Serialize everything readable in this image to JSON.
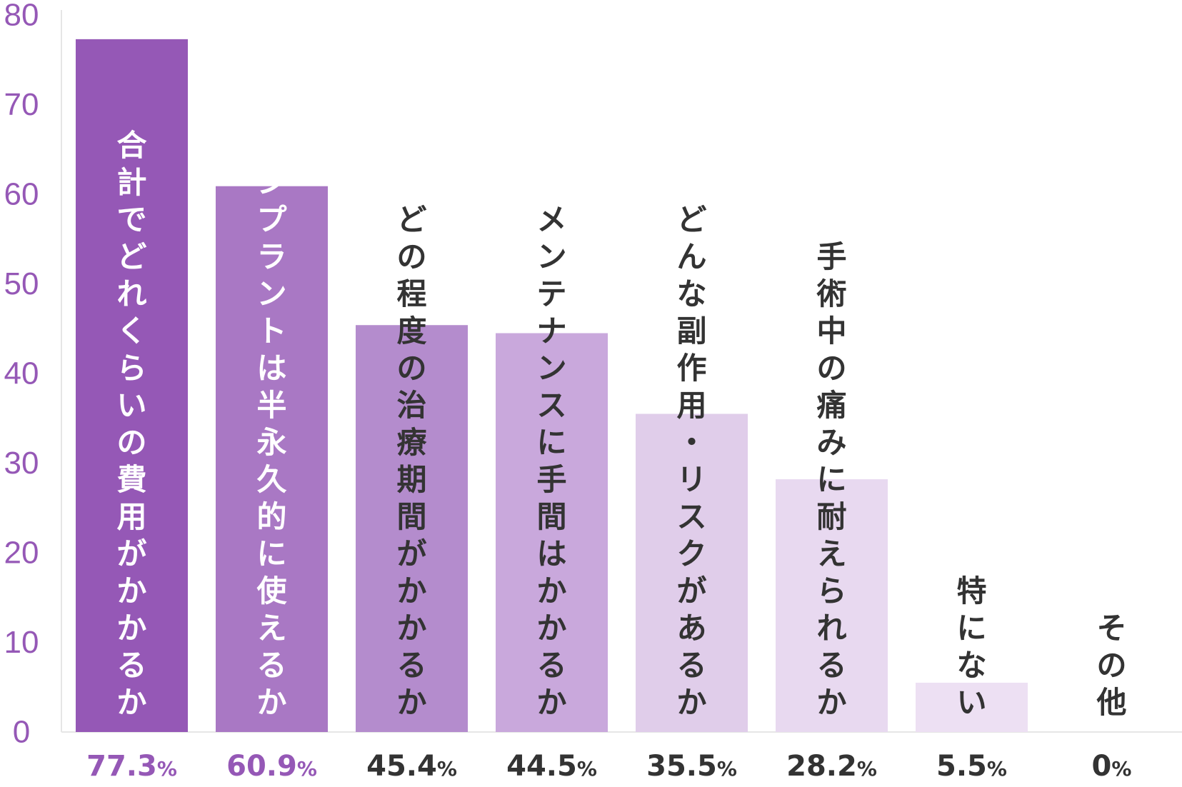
{
  "chart_data": {
    "type": "bar",
    "orientation": "vertical",
    "ylim": [
      0,
      80
    ],
    "yticks": [
      "0",
      "10",
      "20",
      "30",
      "40",
      "50",
      "60",
      "70",
      "80"
    ],
    "grid": false,
    "legend": "none",
    "categories": [
      "合計でどれくらいの費用がかかるか",
      "インプラントは半永久的に使えるか",
      "どの程度の治療期間がかかるか",
      "メンテナンスに手間はかかるか",
      "どんな副作用・リスクがあるか",
      "手術中の痛みに耐えられるか",
      "特にない",
      "その他"
    ],
    "values": [
      77.3,
      60.9,
      45.4,
      44.5,
      35.5,
      28.2,
      5.5,
      0
    ],
    "value_labels": [
      "77.3",
      "60.9",
      "45.4",
      "44.5",
      "35.5",
      "28.2",
      "5.5",
      "0"
    ],
    "value_unit": "%",
    "bar_colors": [
      "#9558b6",
      "#a978c4",
      "#b48ccd",
      "#c9a8dc",
      "#e0cdea",
      "#e8d9f0",
      "#ede0f3",
      "#ffffff"
    ],
    "category_text_colors": [
      "#ffffff",
      "#ffffff",
      "#333333",
      "#333333",
      "#333333",
      "#333333",
      "#333333",
      "#333333"
    ],
    "value_label_colors": [
      "#9558b6",
      "#9558b6",
      "#333333",
      "#333333",
      "#333333",
      "#333333",
      "#333333",
      "#333333"
    ],
    "tick_color": "#9558b6",
    "axis_color": "#e6e6e6"
  }
}
